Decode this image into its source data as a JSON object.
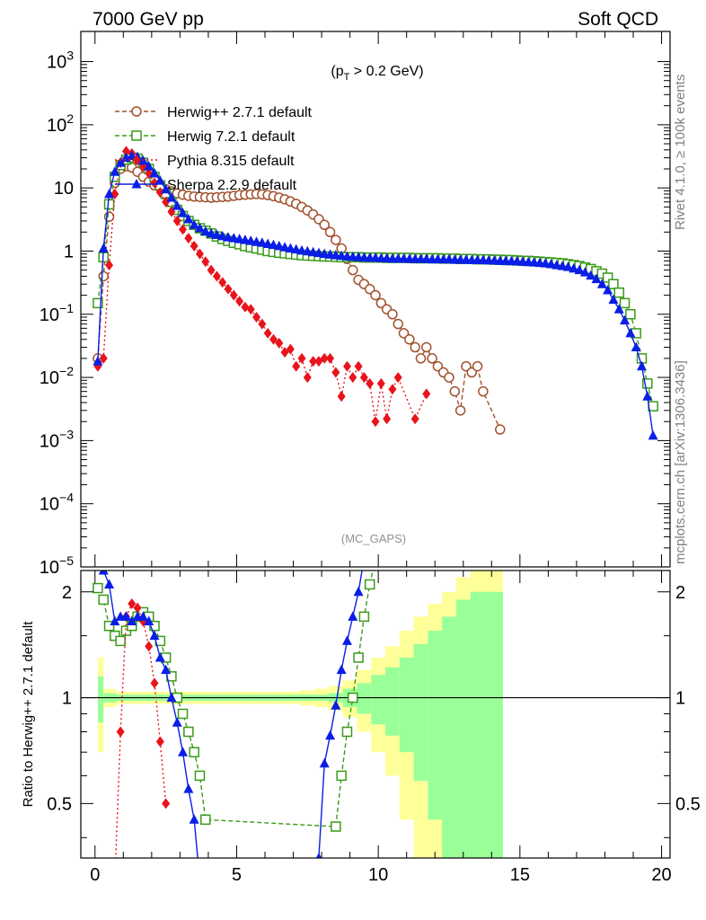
{
  "header": {
    "left": "7000 GeV pp",
    "right": "Soft QCD"
  },
  "side_labels": {
    "rivet": "Rivet 4.1.0, ≥ 100k events",
    "mcplots": "mcplots.cern.ch [arXiv:1306.3436]"
  },
  "colors": {
    "herwigpp": "#a0522d",
    "herwig7": "#3a9a1a",
    "pythia": "#e8141c",
    "sherpa": "#0a1ee6",
    "band_inner": "#99ff99",
    "band_outer": "#ffff99"
  },
  "chart_data": [
    {
      "type": "line",
      "title": "Soft QCD",
      "cut_label_base": "(p",
      "cut_label_sub": "T",
      "cut_label_rest": " > 0.2 GeV)",
      "watermark": "(MC_GAPS)",
      "xlabel": "",
      "ylabel": "",
      "yscale": "log",
      "xlim": [
        -0.5,
        20.3
      ],
      "ylim": [
        1e-05,
        3000
      ],
      "x_ticks": [
        "0",
        "5",
        "10",
        "15",
        "20"
      ],
      "y_ticks": [
        {
          "base": "10",
          "exp": "3"
        },
        {
          "base": "10",
          "exp": "2"
        },
        {
          "base": "10",
          "exp": ""
        },
        {
          "base": "1",
          "exp": ""
        },
        {
          "base": "10",
          "exp": "−1"
        },
        {
          "base": "10",
          "exp": "−2"
        },
        {
          "base": "10",
          "exp": "−3"
        },
        {
          "base": "10",
          "exp": "−4"
        },
        {
          "base": "10",
          "exp": "−5"
        }
      ],
      "legend_position": "top-left",
      "series": [
        {
          "name": "Herwig++ 2.7.1 default",
          "marker": "open-circle",
          "dash": "dashed",
          "x": [
            0.1,
            0.3,
            0.5,
            0.7,
            0.9,
            1.1,
            1.3,
            1.5,
            1.7,
            1.9,
            2.1,
            2.3,
            2.5,
            2.7,
            2.9,
            3.1,
            3.3,
            3.5,
            3.7,
            3.9,
            4.1,
            4.3,
            4.5,
            4.7,
            4.9,
            5.1,
            5.3,
            5.5,
            5.7,
            5.9,
            6.1,
            6.3,
            6.5,
            6.7,
            6.9,
            7.1,
            7.3,
            7.5,
            7.7,
            7.9,
            8.1,
            8.3,
            8.5,
            8.7,
            8.9,
            9.1,
            9.3,
            9.5,
            9.7,
            9.9,
            10.1,
            10.3,
            10.5,
            10.7,
            10.9,
            11.1,
            11.3,
            11.5,
            11.7,
            11.9,
            12.1,
            12.3,
            12.5,
            12.7,
            12.9,
            13.1,
            13.3,
            13.5,
            13.7,
            14.3
          ],
          "values": [
            0.02,
            0.4,
            3.5,
            12,
            20,
            22,
            21,
            18,
            15,
            12.5,
            11,
            10,
            9.5,
            8.8,
            8.2,
            7.8,
            7.5,
            7.3,
            7.2,
            7.1,
            7.0,
            7.1,
            7.2,
            7.3,
            7.5,
            7.7,
            7.8,
            7.9,
            8.0,
            7.9,
            7.7,
            7.4,
            7.0,
            6.6,
            6.1,
            5.6,
            5.0,
            4.4,
            3.8,
            3.2,
            2.6,
            2.0,
            1.5,
            1.1,
            0.75,
            0.5,
            0.35,
            0.3,
            0.25,
            0.2,
            0.15,
            0.12,
            0.1,
            0.07,
            0.05,
            0.04,
            0.03,
            0.02,
            0.03,
            0.02,
            0.015,
            0.012,
            0.01,
            0.006,
            0.003,
            0.015,
            0.012,
            0.015,
            0.006,
            0.0015
          ]
        },
        {
          "name": "Herwig 7.2.1 default",
          "marker": "open-square",
          "dash": "dashed",
          "x": [
            0.1,
            0.3,
            0.5,
            0.7,
            0.9,
            1.1,
            1.3,
            1.5,
            1.7,
            1.9,
            2.1,
            2.3,
            2.5,
            2.7,
            2.9,
            3.1,
            3.3,
            3.5,
            3.7,
            3.9,
            4.1,
            4.3,
            4.5,
            4.7,
            4.9,
            5.1,
            5.3,
            5.5,
            5.7,
            5.9,
            6.1,
            6.3,
            6.5,
            6.7,
            6.9,
            7.1,
            7.3,
            7.5,
            7.7,
            7.9,
            8.1,
            8.3,
            8.5,
            8.7,
            8.9,
            9.1,
            9.3,
            9.5,
            9.7,
            9.9,
            10.1,
            10.3,
            10.5,
            10.7,
            10.9,
            11.1,
            11.3,
            11.5,
            11.7,
            11.9,
            12.1,
            12.3,
            12.5,
            12.7,
            12.9,
            13.1,
            13.3,
            13.5,
            13.7,
            13.9,
            14.1,
            14.3,
            14.5,
            14.7,
            14.9,
            15.1,
            15.3,
            15.5,
            15.7,
            15.9,
            16.1,
            16.3,
            16.5,
            16.7,
            16.9,
            17.1,
            17.3,
            17.5,
            17.7,
            17.9,
            18.1,
            18.3,
            18.5,
            18.7,
            18.9,
            19.1,
            19.3,
            19.5,
            19.7
          ],
          "values": [
            0.15,
            0.8,
            5.5,
            15,
            23,
            28,
            30,
            29,
            25,
            20,
            15,
            11,
            8,
            6,
            4.5,
            3.6,
            3.0,
            2.6,
            2.3,
            2.1,
            1.9,
            1.7,
            1.55,
            1.45,
            1.35,
            1.28,
            1.2,
            1.15,
            1.1,
            1.05,
            1.0,
            0.97,
            0.94,
            0.92,
            0.9,
            0.88,
            0.86,
            0.85,
            0.84,
            0.83,
            0.82,
            0.82,
            0.81,
            0.8,
            0.8,
            0.8,
            0.8,
            0.79,
            0.79,
            0.79,
            0.79,
            0.78,
            0.78,
            0.78,
            0.78,
            0.78,
            0.77,
            0.77,
            0.77,
            0.77,
            0.77,
            0.76,
            0.76,
            0.76,
            0.75,
            0.75,
            0.75,
            0.74,
            0.74,
            0.74,
            0.73,
            0.73,
            0.72,
            0.72,
            0.71,
            0.7,
            0.7,
            0.69,
            0.68,
            0.67,
            0.66,
            0.65,
            0.64,
            0.62,
            0.6,
            0.58,
            0.55,
            0.52,
            0.48,
            0.44,
            0.38,
            0.3,
            0.22,
            0.15,
            0.1,
            0.05,
            0.02,
            0.008,
            0.0035
          ]
        },
        {
          "name": "Pythia 8.315 default",
          "marker": "filled-diamond",
          "dash": "dotted",
          "x": [
            0.1,
            0.3,
            0.5,
            0.7,
            0.9,
            1.1,
            1.3,
            1.5,
            1.7,
            1.9,
            2.1,
            2.3,
            2.5,
            2.7,
            2.9,
            3.1,
            3.3,
            3.5,
            3.7,
            3.9,
            4.1,
            4.3,
            4.5,
            4.7,
            4.9,
            5.1,
            5.3,
            5.5,
            5.7,
            5.9,
            6.1,
            6.3,
            6.5,
            6.7,
            6.9,
            7.1,
            7.3,
            7.5,
            7.7,
            7.9,
            8.1,
            8.3,
            8.5,
            8.7,
            8.9,
            9.1,
            9.3,
            9.5,
            9.7,
            9.9,
            10.1,
            10.3,
            10.5,
            10.7,
            11.3,
            11.7
          ],
          "values": [
            0.015,
            0.02,
            0.6,
            8,
            25,
            38,
            35,
            28,
            22,
            17,
            12,
            8.5,
            6,
            4.2,
            3.0,
            2.2,
            1.6,
            1.2,
            0.9,
            0.68,
            0.5,
            0.4,
            0.32,
            0.25,
            0.2,
            0.16,
            0.13,
            0.12,
            0.09,
            0.07,
            0.05,
            0.04,
            0.035,
            0.025,
            0.028,
            0.015,
            0.02,
            0.01,
            0.018,
            0.018,
            0.02,
            0.02,
            0.012,
            0.005,
            0.015,
            0.01,
            0.015,
            0.01,
            0.008,
            0.002,
            0.008,
            0.0022,
            0.0065,
            0.01,
            0.0022,
            0.0055
          ]
        },
        {
          "name": "Sherpa 2.2.9 default",
          "marker": "filled-triangle",
          "dash": "solid",
          "x": [
            0.1,
            0.3,
            0.5,
            0.7,
            0.9,
            1.1,
            1.3,
            1.5,
            1.7,
            1.9,
            2.1,
            2.3,
            2.5,
            2.7,
            2.9,
            3.1,
            3.3,
            3.5,
            3.7,
            3.9,
            4.1,
            4.3,
            4.5,
            4.7,
            4.9,
            5.1,
            5.3,
            5.5,
            5.7,
            5.9,
            6.1,
            6.3,
            6.5,
            6.7,
            6.9,
            7.1,
            7.3,
            7.5,
            7.7,
            7.9,
            8.1,
            8.3,
            8.5,
            8.7,
            8.9,
            9.1,
            9.3,
            9.5,
            9.7,
            9.9,
            10.1,
            10.3,
            10.5,
            10.7,
            10.9,
            11.1,
            11.3,
            11.5,
            11.7,
            11.9,
            12.1,
            12.3,
            12.5,
            12.7,
            12.9,
            13.1,
            13.3,
            13.5,
            13.7,
            13.9,
            14.1,
            14.3,
            14.5,
            14.7,
            14.9,
            15.1,
            15.3,
            15.5,
            15.7,
            15.9,
            16.1,
            16.3,
            16.5,
            16.7,
            16.9,
            17.1,
            17.3,
            17.5,
            17.7,
            17.9,
            18.1,
            18.3,
            18.5,
            18.7,
            18.9,
            19.1,
            19.3,
            19.5,
            19.7
          ],
          "values": [
            0.018,
            1.1,
            8,
            18,
            25,
            30,
            32,
            31,
            27,
            22,
            17,
            13,
            9.5,
            7,
            5.2,
            4.0,
            3.2,
            2.6,
            2.3,
            2.05,
            1.9,
            1.8,
            1.72,
            1.65,
            1.6,
            1.55,
            1.5,
            1.45,
            1.4,
            1.35,
            1.3,
            1.25,
            1.2,
            1.15,
            1.1,
            1.06,
            1.02,
            0.99,
            0.96,
            0.93,
            0.9,
            0.88,
            0.86,
            0.84,
            0.82,
            0.81,
            0.8,
            0.79,
            0.78,
            0.78,
            0.77,
            0.77,
            0.76,
            0.76,
            0.76,
            0.75,
            0.75,
            0.75,
            0.75,
            0.74,
            0.74,
            0.74,
            0.74,
            0.73,
            0.73,
            0.73,
            0.72,
            0.72,
            0.72,
            0.71,
            0.71,
            0.7,
            0.7,
            0.69,
            0.69,
            0.68,
            0.67,
            0.66,
            0.65,
            0.64,
            0.62,
            0.6,
            0.58,
            0.56,
            0.53,
            0.5,
            0.46,
            0.41,
            0.36,
            0.3,
            0.24,
            0.17,
            0.12,
            0.08,
            0.05,
            0.03,
            0.015,
            0.005,
            0.0012
          ]
        }
      ]
    },
    {
      "type": "line",
      "ylabel": "Ratio to Herwig++ 2.7.1 default",
      "xlim": [
        -0.5,
        20.3
      ],
      "ylim": [
        0.35,
        2.3
      ],
      "reference_value": 1.0,
      "x_ticks": [
        "0",
        "5",
        "10",
        "15",
        "20"
      ],
      "y_ticks": [
        "2",
        "1",
        "0.5"
      ],
      "uncertainty_band": {
        "x": [
          0.1,
          0.5,
          1,
          1.5,
          2,
          2.5,
          3,
          3.5,
          4,
          4.5,
          5,
          5.5,
          6,
          6.5,
          7,
          7.5,
          8,
          8.5,
          9,
          9.5,
          10,
          10.5,
          11,
          11.5,
          12,
          12.5,
          13,
          13.5,
          13.9,
          14.3
        ],
        "inner_half_width": [
          0.15,
          0.03,
          0.02,
          0.02,
          0.02,
          0.02,
          0.02,
          0.02,
          0.02,
          0.02,
          0.02,
          0.02,
          0.02,
          0.02,
          0.02,
          0.02,
          0.02,
          0.03,
          0.06,
          0.1,
          0.16,
          0.22,
          0.3,
          0.42,
          0.55,
          0.7,
          0.9,
          1.0,
          1.0,
          1.0
        ],
        "outer_half_width": [
          0.3,
          0.06,
          0.04,
          0.04,
          0.04,
          0.04,
          0.04,
          0.04,
          0.04,
          0.04,
          0.04,
          0.04,
          0.04,
          0.04,
          0.04,
          0.05,
          0.06,
          0.08,
          0.12,
          0.2,
          0.3,
          0.4,
          0.55,
          0.7,
          0.85,
          1.0,
          1.2,
          1.3,
          1.3,
          1.3
        ]
      },
      "series": [
        {
          "name": "Herwig 7.2.1 default",
          "x": [
            0.1,
            0.3,
            0.5,
            0.7,
            0.9,
            1.1,
            1.3,
            1.5,
            1.7,
            1.9,
            2.1,
            2.3,
            2.5,
            2.7,
            2.9,
            3.1,
            3.3,
            3.5,
            3.7,
            3.9,
            8.5,
            8.7,
            8.9,
            9.1,
            9.3,
            9.5,
            9.7,
            9.9
          ],
          "values": [
            2.05,
            1.9,
            1.6,
            1.5,
            1.45,
            1.55,
            1.6,
            1.7,
            1.75,
            1.7,
            1.6,
            1.45,
            1.3,
            1.15,
            1.0,
            0.9,
            0.8,
            0.7,
            0.6,
            0.45,
            0.43,
            0.6,
            0.8,
            1.0,
            1.3,
            1.7,
            2.1,
            2.5
          ]
        },
        {
          "name": "Pythia 8.315 default",
          "x": [
            0.7,
            0.9,
            1.1,
            1.3,
            1.5,
            1.7,
            1.9,
            2.1,
            2.3,
            2.5
          ],
          "values": [
            0.3,
            0.8,
            1.7,
            1.85,
            1.8,
            1.65,
            1.4,
            1.1,
            0.75,
            0.5
          ]
        },
        {
          "name": "Sherpa 2.2.9 default",
          "x": [
            0.1,
            0.3,
            0.5,
            0.7,
            0.9,
            1.1,
            1.3,
            1.5,
            1.7,
            1.9,
            2.1,
            2.3,
            2.5,
            2.7,
            2.9,
            3.1,
            3.3,
            3.5,
            3.7,
            7.9,
            8.1,
            8.3,
            8.5,
            8.7,
            8.9,
            9.1,
            9.3,
            9.5
          ],
          "values": [
            2.6,
            2.3,
            2.1,
            1.65,
            1.7,
            1.7,
            1.65,
            1.7,
            1.7,
            1.65,
            1.5,
            1.3,
            1.2,
            1.0,
            0.85,
            0.7,
            0.55,
            0.45,
            0.3,
            0.35,
            0.65,
            0.78,
            0.95,
            1.2,
            1.45,
            1.7,
            2.0,
            2.5
          ]
        }
      ]
    }
  ]
}
